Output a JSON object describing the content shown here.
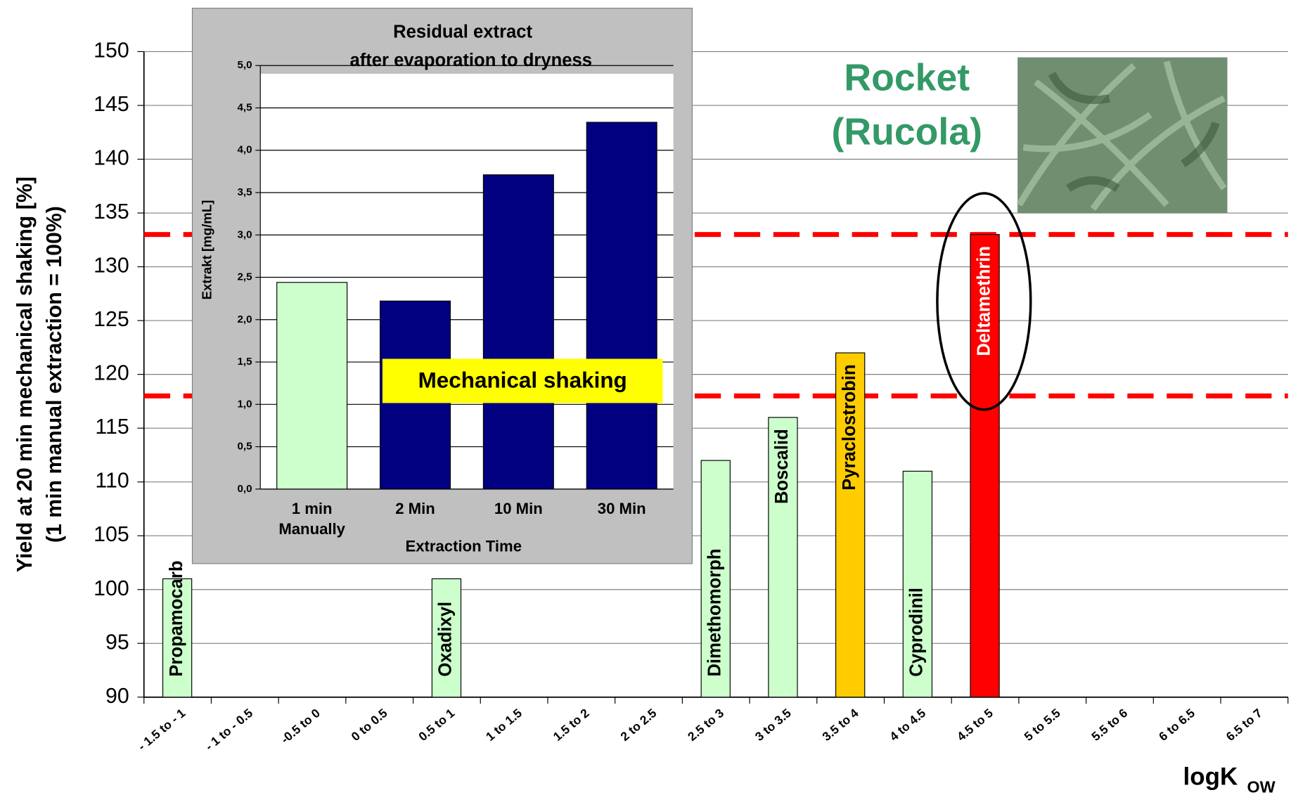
{
  "chart_data": [
    {
      "type": "bar",
      "y_label": [
        "Yield at 20 min mechanical shaking [%]",
        "(1 min manual extraction = 100%)"
      ],
      "x_label": {
        "text": "logK",
        "subscript": "OW"
      },
      "categories": [
        "- 1.5 to - 1",
        "- 1 to - 0.5",
        "-0.5 to 0",
        "0 to 0.5",
        "0.5 to 1",
        "1 to 1.5",
        "1.5 to 2",
        "2 to 2.5",
        "2.5 to 3",
        "3 to 3.5",
        "3.5 to 4",
        "4 to 4.5",
        "4.5 to 5",
        "5 to 5.5",
        "5.5 to 6",
        "6 to 6.5",
        "6.5 to 7"
      ],
      "values": [
        101,
        null,
        null,
        null,
        101,
        null,
        null,
        null,
        112,
        116,
        122,
        111,
        133,
        null,
        null,
        null,
        null
      ],
      "bar_labels": [
        "Propamocarb",
        null,
        null,
        null,
        "Oxadixyl",
        null,
        null,
        null,
        "Dimethomorph",
        "Boscalid",
        "Pyraclostrobin",
        "Cyprodinil",
        "Deltamethrin",
        null,
        null,
        null,
        null
      ],
      "colors": [
        "#ccffcc",
        null,
        null,
        null,
        "#ccffcc",
        null,
        null,
        null,
        "#ccffcc",
        "#ccffcc",
        "#ffcc00",
        "#ccffcc",
        "#ff0000",
        null,
        null,
        null,
        null
      ],
      "reference_lines": [
        118,
        133
      ],
      "reference_color": "#ff0000",
      "ylim": [
        90,
        150
      ],
      "yticks": [
        90,
        95,
        100,
        105,
        110,
        115,
        120,
        125,
        130,
        135,
        140,
        145,
        150
      ],
      "grid": true,
      "annotations": [
        "Rocket",
        "(Rucola)"
      ]
    },
    {
      "type": "bar",
      "title": [
        "Residual extract",
        "after evaporation to dryness"
      ],
      "y_label": "Extrakt [mg/mL]",
      "x_label": "Extraction Time",
      "categories": [
        [
          "1 min",
          "Manually"
        ],
        [
          "2 Min"
        ],
        [
          "10 Min"
        ],
        [
          "30 Min"
        ]
      ],
      "values": [
        2.44,
        2.22,
        3.71,
        4.33
      ],
      "colors": [
        "#ccffcc",
        "#000080",
        "#000080",
        "#000080"
      ],
      "ylim": [
        0,
        5
      ],
      "yticks": [
        {
          "value": 0,
          "label": "0,0"
        },
        {
          "value": 0.5,
          "label": "0,5"
        },
        {
          "value": 1,
          "label": "1,0"
        },
        {
          "value": 1.5,
          "label": "1,5"
        },
        {
          "value": 2,
          "label": "2,0"
        },
        {
          "value": 2.5,
          "label": "2,5"
        },
        {
          "value": 3,
          "label": "3,0"
        },
        {
          "value": 3.5,
          "label": "3,5"
        },
        {
          "value": 4,
          "label": "4,0"
        },
        {
          "value": 4.5,
          "label": "4,5"
        },
        {
          "value": 5,
          "label": "5,0"
        }
      ],
      "grid": true,
      "annotation": "Mechanical shaking"
    }
  ]
}
